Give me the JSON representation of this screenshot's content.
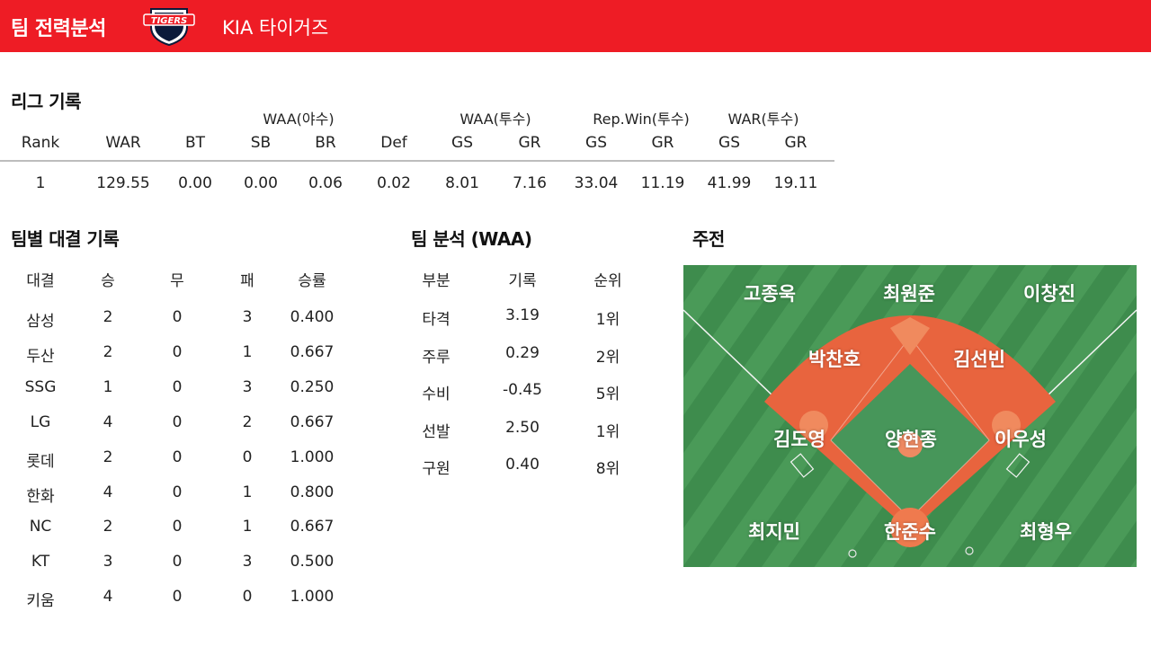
{
  "header": {
    "title": "팀 전력분석",
    "logo_text": "TIGERS",
    "team_name": "KIA 타이거즈"
  },
  "league": {
    "title": "리그 기록",
    "groups": [
      "WAA(야수)",
      "WAA(투수)",
      "Rep.Win(투수)",
      "WAR(투수)"
    ],
    "columns": [
      "Rank",
      "WAR",
      "BT",
      "SB",
      "BR",
      "Def",
      "GS",
      "GR",
      "GS",
      "GR",
      "GS",
      "GR"
    ],
    "row": [
      "1",
      "129.55",
      "0.00",
      "0.00",
      "0.06",
      "0.02",
      "8.01",
      "7.16",
      "33.04",
      "11.19",
      "41.99",
      "19.11"
    ]
  },
  "matchups": {
    "title": "팀별 대결 기록",
    "columns": [
      "대결",
      "승",
      "무",
      "패",
      "승률"
    ],
    "rows": [
      [
        "삼성",
        "2",
        "0",
        "3",
        "0.400"
      ],
      [
        "두산",
        "2",
        "0",
        "1",
        "0.667"
      ],
      [
        "SSG",
        "1",
        "0",
        "3",
        "0.250"
      ],
      [
        "LG",
        "4",
        "0",
        "2",
        "0.667"
      ],
      [
        "롯데",
        "2",
        "0",
        "0",
        "1.000"
      ],
      [
        "한화",
        "4",
        "0",
        "1",
        "0.800"
      ],
      [
        "NC",
        "2",
        "0",
        "1",
        "0.667"
      ],
      [
        "KT",
        "3",
        "0",
        "3",
        "0.500"
      ],
      [
        "키움",
        "4",
        "0",
        "0",
        "1.000"
      ]
    ]
  },
  "analysis": {
    "title": "팀 분석 (WAA)",
    "columns": [
      "부분",
      "기록",
      "순위"
    ],
    "rows": [
      [
        "타격",
        "3.19",
        "1위"
      ],
      [
        "주루",
        "0.29",
        "2위"
      ],
      [
        "수비",
        "-0.45",
        "5위"
      ],
      [
        "선발",
        "2.50",
        "1위"
      ],
      [
        "구원",
        "0.40",
        "8위"
      ]
    ]
  },
  "lineup": {
    "title": "주전",
    "left_field": "고종욱",
    "center_field": "최원준",
    "right_field": "이창진",
    "shortstop": "박찬호",
    "second_base": "김선빈",
    "third_base": "김도영",
    "pitcher": "양현종",
    "first_base": "이우성",
    "designated_hitter": "최지민",
    "catcher": "한준수",
    "utility": "최형우"
  },
  "colors": {
    "brand_red": "#ee1c25",
    "grass": "#3f8f4f",
    "dirt": "#e8643e"
  }
}
